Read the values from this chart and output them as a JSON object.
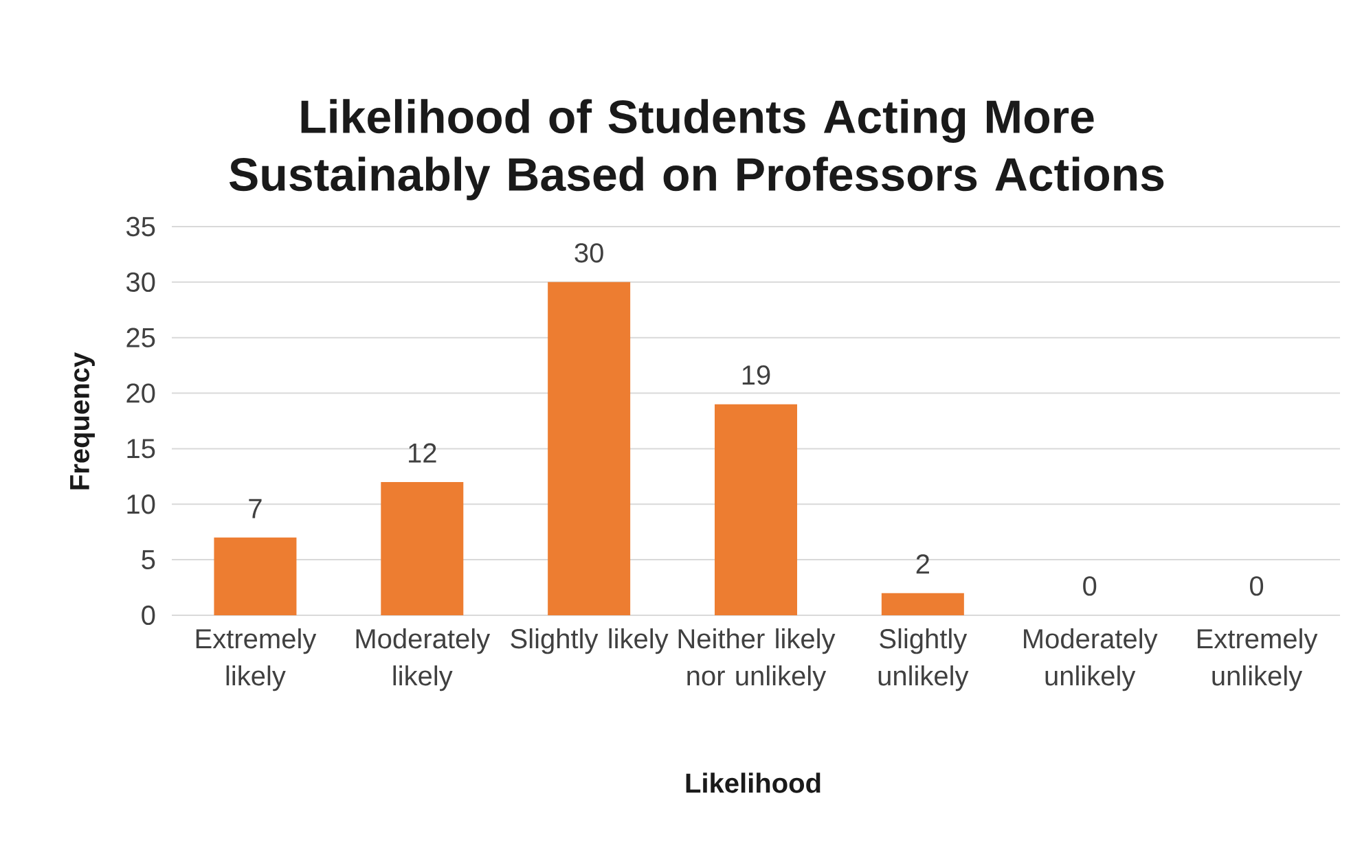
{
  "chart_data": {
    "type": "bar",
    "title": "Likelihood of Students Acting More Sustainably Based on Professors Actions",
    "xlabel": "Likelihood",
    "ylabel": "Frequency",
    "categories": [
      "Extremely likely",
      "Moderately likely",
      "Slightly likely",
      "Neither likely nor unlikely",
      "Slightly unlikely",
      "Moderately unlikely",
      "Extremely unlikely"
    ],
    "values": [
      7,
      12,
      30,
      19,
      2,
      0,
      0
    ],
    "color": "#ed7d31",
    "ylim": [
      0,
      35
    ],
    "yticks": [
      0,
      5,
      10,
      15,
      20,
      25,
      30,
      35
    ],
    "grid": "y",
    "data_labels": true
  }
}
